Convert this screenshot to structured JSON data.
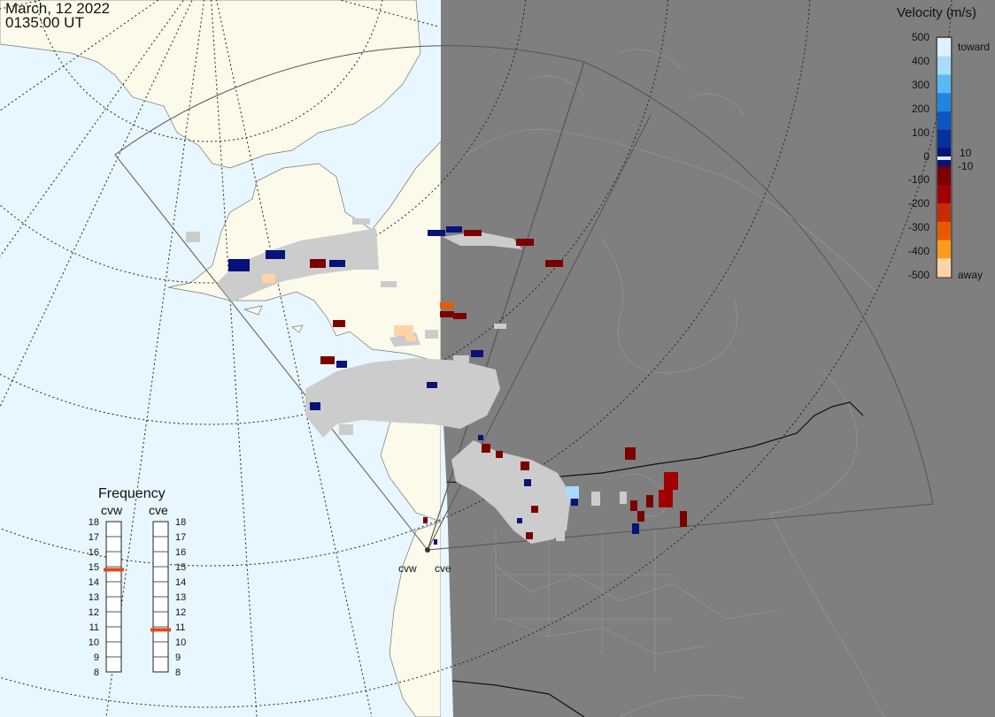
{
  "header": {
    "date": "March, 12 2022",
    "time": "0135:00 UT"
  },
  "colorbar": {
    "title": "Velocity (m/s)",
    "ticks": [
      "500",
      "400",
      "300",
      "200",
      "100",
      "10",
      "0",
      "-10",
      "-100",
      "-200",
      "-300",
      "-400",
      "-500"
    ],
    "toward_label": "toward",
    "away_label": "away",
    "colors": [
      "#dff1ff",
      "#a7dcff",
      "#5ab8f5",
      "#1f86e0",
      "#0c55c0",
      "#0a2f9c",
      "#07127a",
      "#7a0000",
      "#a00000",
      "#c82a00",
      "#e85a00",
      "#ff9a1a",
      "#ffd3a6"
    ]
  },
  "frequency": {
    "title": "Frequency",
    "radars": [
      "cvw",
      "cve"
    ],
    "ticks": [
      "18",
      "17",
      "16",
      "15",
      "14",
      "13",
      "12",
      "11",
      "10",
      "9",
      "8"
    ],
    "cvw_mhz": 14.8,
    "cve_mhz": 10.8,
    "marker_color": "#e04a1e"
  },
  "sites": {
    "west": "cvw",
    "east": "cve"
  },
  "colors": {
    "ocean": "#e8f6ff",
    "land": "#fcfbeb",
    "night": "#7f7f7f",
    "gs_scatter": "#cccccc",
    "fov_outline": "#555555"
  }
}
